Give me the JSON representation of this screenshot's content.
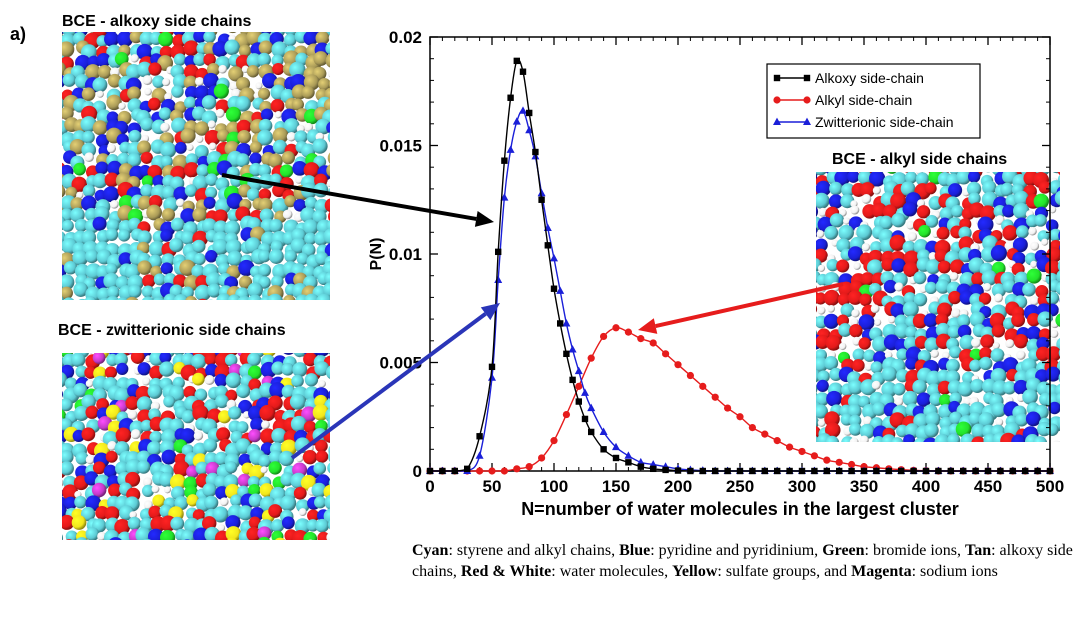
{
  "panel_label": "a)",
  "snapshots": {
    "alkoxy_title": "BCE - alkoxy side chains",
    "alkyl_title": "BCE - alkyl side chains",
    "zwitterionic_title": "BCE - zwitterionic side chains"
  },
  "colors": {
    "cyan": "#5cc9d3",
    "blue": "#1a1fd8",
    "green": "#22e22a",
    "tan": "#a99a57",
    "red": "#e31a1a",
    "white": "#f2f2f2",
    "yellow": "#f1e61c",
    "magenta": "#c43ac8",
    "arrow_black": "#000000",
    "arrow_red": "#e61c1c",
    "arrow_blue": "#2a35b8"
  },
  "caption": {
    "cyan_label": "Cyan",
    "cyan_text": ": styrene and alkyl chains, ",
    "blue_label": "Blue",
    "blue_text": ": pyridine and pyridinium, ",
    "green_label": "Green",
    "green_text": ": bromide ions, ",
    "tan_label": "Tan",
    "tan_text": ": alkoxy side chains, ",
    "redwhite_label": "Red & White",
    "redwhite_text": ": water molecules, ",
    "yellow_label": "Yellow",
    "yellow_text": ": sulfate groups, and ",
    "magenta_label": "Magenta",
    "magenta_text": ": sodium ions"
  },
  "chart_data": {
    "type": "line",
    "xlabel": "N=number of water molecules in the largest cluster",
    "ylabel": "P(N)",
    "xlim": [
      0,
      500
    ],
    "ylim": [
      0,
      0.02
    ],
    "xticks": [
      0,
      50,
      100,
      150,
      200,
      250,
      300,
      350,
      400,
      450,
      500
    ],
    "xtick_labels": [
      "0",
      "50",
      "100",
      "150",
      "200",
      "250",
      "300",
      "350",
      "400",
      "450",
      "500"
    ],
    "yticks": [
      0,
      0.005,
      0.01,
      0.015,
      0.02
    ],
    "ytick_labels": [
      "0",
      "0.005",
      "0.01",
      "0.015",
      "0.02"
    ],
    "legend_position": "top-right",
    "series": [
      {
        "name": "Alkoxy side-chain",
        "color": "#000000",
        "marker": "square",
        "x": [
          0,
          10,
          20,
          30,
          40,
          50,
          55,
          60,
          65,
          70,
          75,
          80,
          85,
          90,
          95,
          100,
          105,
          110,
          115,
          120,
          125,
          130,
          140,
          150,
          160,
          170,
          180,
          190,
          200,
          210,
          220,
          230,
          240,
          250,
          260,
          270,
          280,
          290,
          300,
          310,
          320,
          330,
          340,
          350,
          360,
          370,
          380,
          390,
          400,
          410,
          420,
          430,
          440,
          450,
          460,
          470,
          480,
          490,
          500
        ],
        "y": [
          0,
          0,
          0,
          0.0001,
          0.0016,
          0.0048,
          0.0101,
          0.0143,
          0.0172,
          0.0189,
          0.0184,
          0.0165,
          0.0147,
          0.0125,
          0.0104,
          0.0084,
          0.0068,
          0.0054,
          0.0042,
          0.0032,
          0.0024,
          0.0018,
          0.001,
          0.0006,
          0.0004,
          0.0002,
          0.0001,
          5e-05,
          2e-05,
          0,
          0,
          0,
          0,
          0,
          0,
          0,
          0,
          0,
          0,
          0,
          0,
          0,
          0,
          0,
          0,
          0,
          0,
          0,
          0,
          0,
          0,
          0,
          0,
          0,
          0,
          0,
          0,
          0,
          0
        ]
      },
      {
        "name": "Alkyl side-chain",
        "color": "#e61c1c",
        "marker": "circle",
        "x": [
          0,
          10,
          20,
          30,
          40,
          50,
          60,
          70,
          80,
          90,
          100,
          110,
          120,
          130,
          140,
          150,
          160,
          170,
          180,
          190,
          200,
          210,
          220,
          230,
          240,
          250,
          260,
          270,
          280,
          290,
          300,
          310,
          320,
          330,
          340,
          350,
          360,
          370,
          380,
          390,
          400,
          410,
          420,
          430,
          440,
          450,
          460,
          470,
          480,
          490,
          500
        ],
        "y": [
          0,
          0,
          0,
          0,
          0,
          0,
          0,
          0.0001,
          0.0002,
          0.0006,
          0.0014,
          0.0026,
          0.0039,
          0.0052,
          0.0062,
          0.0066,
          0.0064,
          0.0061,
          0.0059,
          0.0054,
          0.0049,
          0.0044,
          0.0039,
          0.0034,
          0.0029,
          0.0025,
          0.002,
          0.0017,
          0.0014,
          0.0011,
          0.0009,
          0.0007,
          0.0005,
          0.0004,
          0.0003,
          0.0002,
          0.00015,
          0.0001,
          6e-05,
          3e-05,
          1e-05,
          0,
          0,
          0,
          0,
          0,
          0,
          0,
          0,
          0,
          0
        ]
      },
      {
        "name": "Zwitterionic side-chain",
        "color": "#1a1fd8",
        "marker": "triangle",
        "x": [
          0,
          10,
          20,
          30,
          40,
          50,
          55,
          60,
          65,
          70,
          75,
          80,
          85,
          90,
          95,
          100,
          105,
          110,
          115,
          120,
          125,
          130,
          140,
          150,
          160,
          170,
          180,
          190,
          200,
          210,
          220,
          230,
          240,
          250,
          260,
          270,
          280,
          290,
          300,
          310,
          320,
          330,
          340,
          350,
          360,
          370,
          380,
          390,
          400,
          410,
          420,
          430,
          440,
          450,
          460,
          470,
          480,
          490,
          500
        ],
        "y": [
          0,
          0,
          0,
          0,
          0.0007,
          0.0043,
          0.0088,
          0.0126,
          0.0148,
          0.0161,
          0.0166,
          0.0157,
          0.0145,
          0.0128,
          0.0112,
          0.0098,
          0.0083,
          0.0068,
          0.0056,
          0.0046,
          0.0036,
          0.0029,
          0.0018,
          0.0011,
          0.0007,
          0.0004,
          0.0003,
          0.0002,
          0.0001,
          5e-05,
          2e-05,
          0,
          0,
          0,
          0,
          0,
          0,
          0,
          0,
          0,
          0,
          0,
          0,
          0,
          0,
          0,
          0,
          0,
          0,
          0,
          0,
          0,
          0,
          0,
          0,
          0,
          0,
          0,
          0
        ]
      }
    ]
  }
}
